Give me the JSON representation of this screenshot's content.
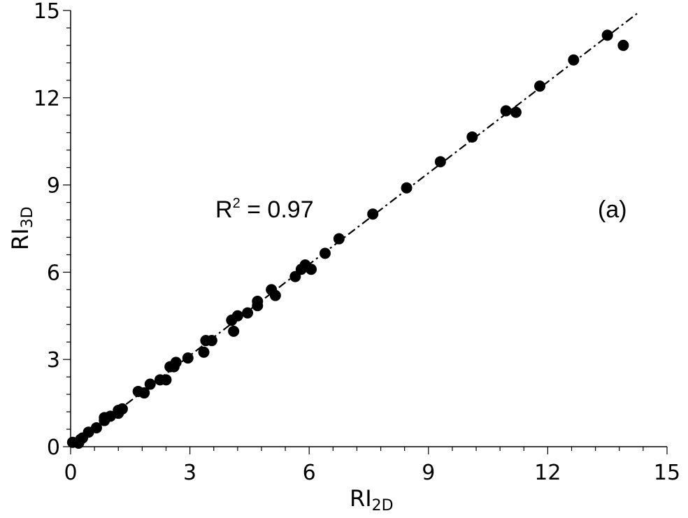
{
  "chart_data": {
    "type": "scatter",
    "xlabel": "RI",
    "xlabel_sub": "2D",
    "ylabel": "RI",
    "ylabel_sub": "3D",
    "xlim": [
      0,
      15
    ],
    "ylim": [
      0,
      15
    ],
    "xticks": [
      0,
      3,
      6,
      9,
      12,
      15
    ],
    "yticks": [
      0,
      3,
      6,
      9,
      12,
      15
    ],
    "grid": false,
    "legend": "none",
    "annotations": {
      "r2_label": "R",
      "r2_sup": "2",
      "r2_value": " = 0.97",
      "panel_label": "(a)"
    },
    "fit_line": {
      "style": "dash-dot",
      "x": [
        0,
        14.3
      ],
      "y": [
        0,
        14.95
      ]
    },
    "series": [
      {
        "marker_color": "#000000",
        "points": [
          [
            0.05,
            0.15
          ],
          [
            0.2,
            0.12
          ],
          [
            0.25,
            0.25
          ],
          [
            0.3,
            0.3
          ],
          [
            0.45,
            0.5
          ],
          [
            0.65,
            0.65
          ],
          [
            0.85,
            0.9
          ],
          [
            0.85,
            1.0
          ],
          [
            1.0,
            1.05
          ],
          [
            1.2,
            1.15
          ],
          [
            1.2,
            1.25
          ],
          [
            1.3,
            1.3
          ],
          [
            1.7,
            1.9
          ],
          [
            1.85,
            1.85
          ],
          [
            2.0,
            2.15
          ],
          [
            2.25,
            2.3
          ],
          [
            2.4,
            2.3
          ],
          [
            2.5,
            2.75
          ],
          [
            2.6,
            2.75
          ],
          [
            2.65,
            2.9
          ],
          [
            2.95,
            3.05
          ],
          [
            3.35,
            3.25
          ],
          [
            3.4,
            3.65
          ],
          [
            3.55,
            3.65
          ],
          [
            4.05,
            4.35
          ],
          [
            4.1,
            3.97
          ],
          [
            4.2,
            4.5
          ],
          [
            4.45,
            4.6
          ],
          [
            4.7,
            5.0
          ],
          [
            4.7,
            4.85
          ],
          [
            5.05,
            5.4
          ],
          [
            5.15,
            5.2
          ],
          [
            5.65,
            5.85
          ],
          [
            5.8,
            6.1
          ],
          [
            5.9,
            6.25
          ],
          [
            6.05,
            6.1
          ],
          [
            6.4,
            6.65
          ],
          [
            6.75,
            7.15
          ],
          [
            7.6,
            8.0
          ],
          [
            8.45,
            8.9
          ],
          [
            9.3,
            9.8
          ],
          [
            10.1,
            10.65
          ],
          [
            10.95,
            11.55
          ],
          [
            11.2,
            11.5
          ],
          [
            11.8,
            12.4
          ],
          [
            12.65,
            13.3
          ],
          [
            13.5,
            14.15
          ],
          [
            13.9,
            13.8
          ]
        ]
      }
    ]
  }
}
